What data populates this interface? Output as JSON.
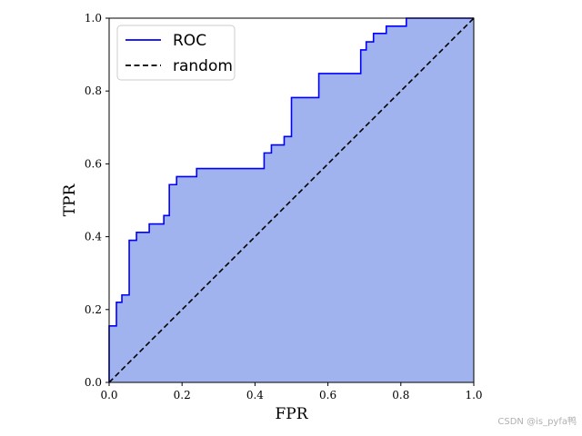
{
  "chart_data": {
    "type": "line",
    "title": "",
    "xlabel": "FPR",
    "ylabel": "TPR",
    "xlim": [
      0,
      1
    ],
    "ylim": [
      0,
      1
    ],
    "xticks": [
      "0.0",
      "0.2",
      "0.4",
      "0.6",
      "0.8",
      "1.0"
    ],
    "yticks": [
      "0.0",
      "0.2",
      "0.4",
      "0.6",
      "0.8",
      "1.0"
    ],
    "grid": false,
    "legend_position": "top-left",
    "series": [
      {
        "name": "ROC",
        "color": "#0000ff",
        "fill_color": "#a0b3ee",
        "style": "solid",
        "x": [
          0.0,
          0.0,
          0.02,
          0.02,
          0.035,
          0.035,
          0.055,
          0.055,
          0.075,
          0.075,
          0.11,
          0.11,
          0.15,
          0.15,
          0.165,
          0.165,
          0.185,
          0.185,
          0.24,
          0.24,
          0.425,
          0.425,
          0.445,
          0.445,
          0.48,
          0.48,
          0.5,
          0.5,
          0.575,
          0.575,
          0.69,
          0.69,
          0.705,
          0.705,
          0.725,
          0.725,
          0.76,
          0.76,
          0.815,
          0.815,
          1.0
        ],
        "y": [
          0.0,
          0.155,
          0.155,
          0.22,
          0.22,
          0.24,
          0.24,
          0.39,
          0.39,
          0.412,
          0.412,
          0.435,
          0.435,
          0.458,
          0.458,
          0.543,
          0.543,
          0.565,
          0.565,
          0.587,
          0.587,
          0.63,
          0.63,
          0.652,
          0.652,
          0.675,
          0.675,
          0.782,
          0.782,
          0.848,
          0.848,
          0.913,
          0.913,
          0.935,
          0.935,
          0.958,
          0.958,
          0.978,
          0.978,
          1.0,
          1.0
        ]
      },
      {
        "name": "random",
        "color": "#000000",
        "style": "dashed",
        "x": [
          0,
          1
        ],
        "y": [
          0,
          1
        ]
      }
    ]
  },
  "watermark": "CSDN @is_pyfa鸭"
}
